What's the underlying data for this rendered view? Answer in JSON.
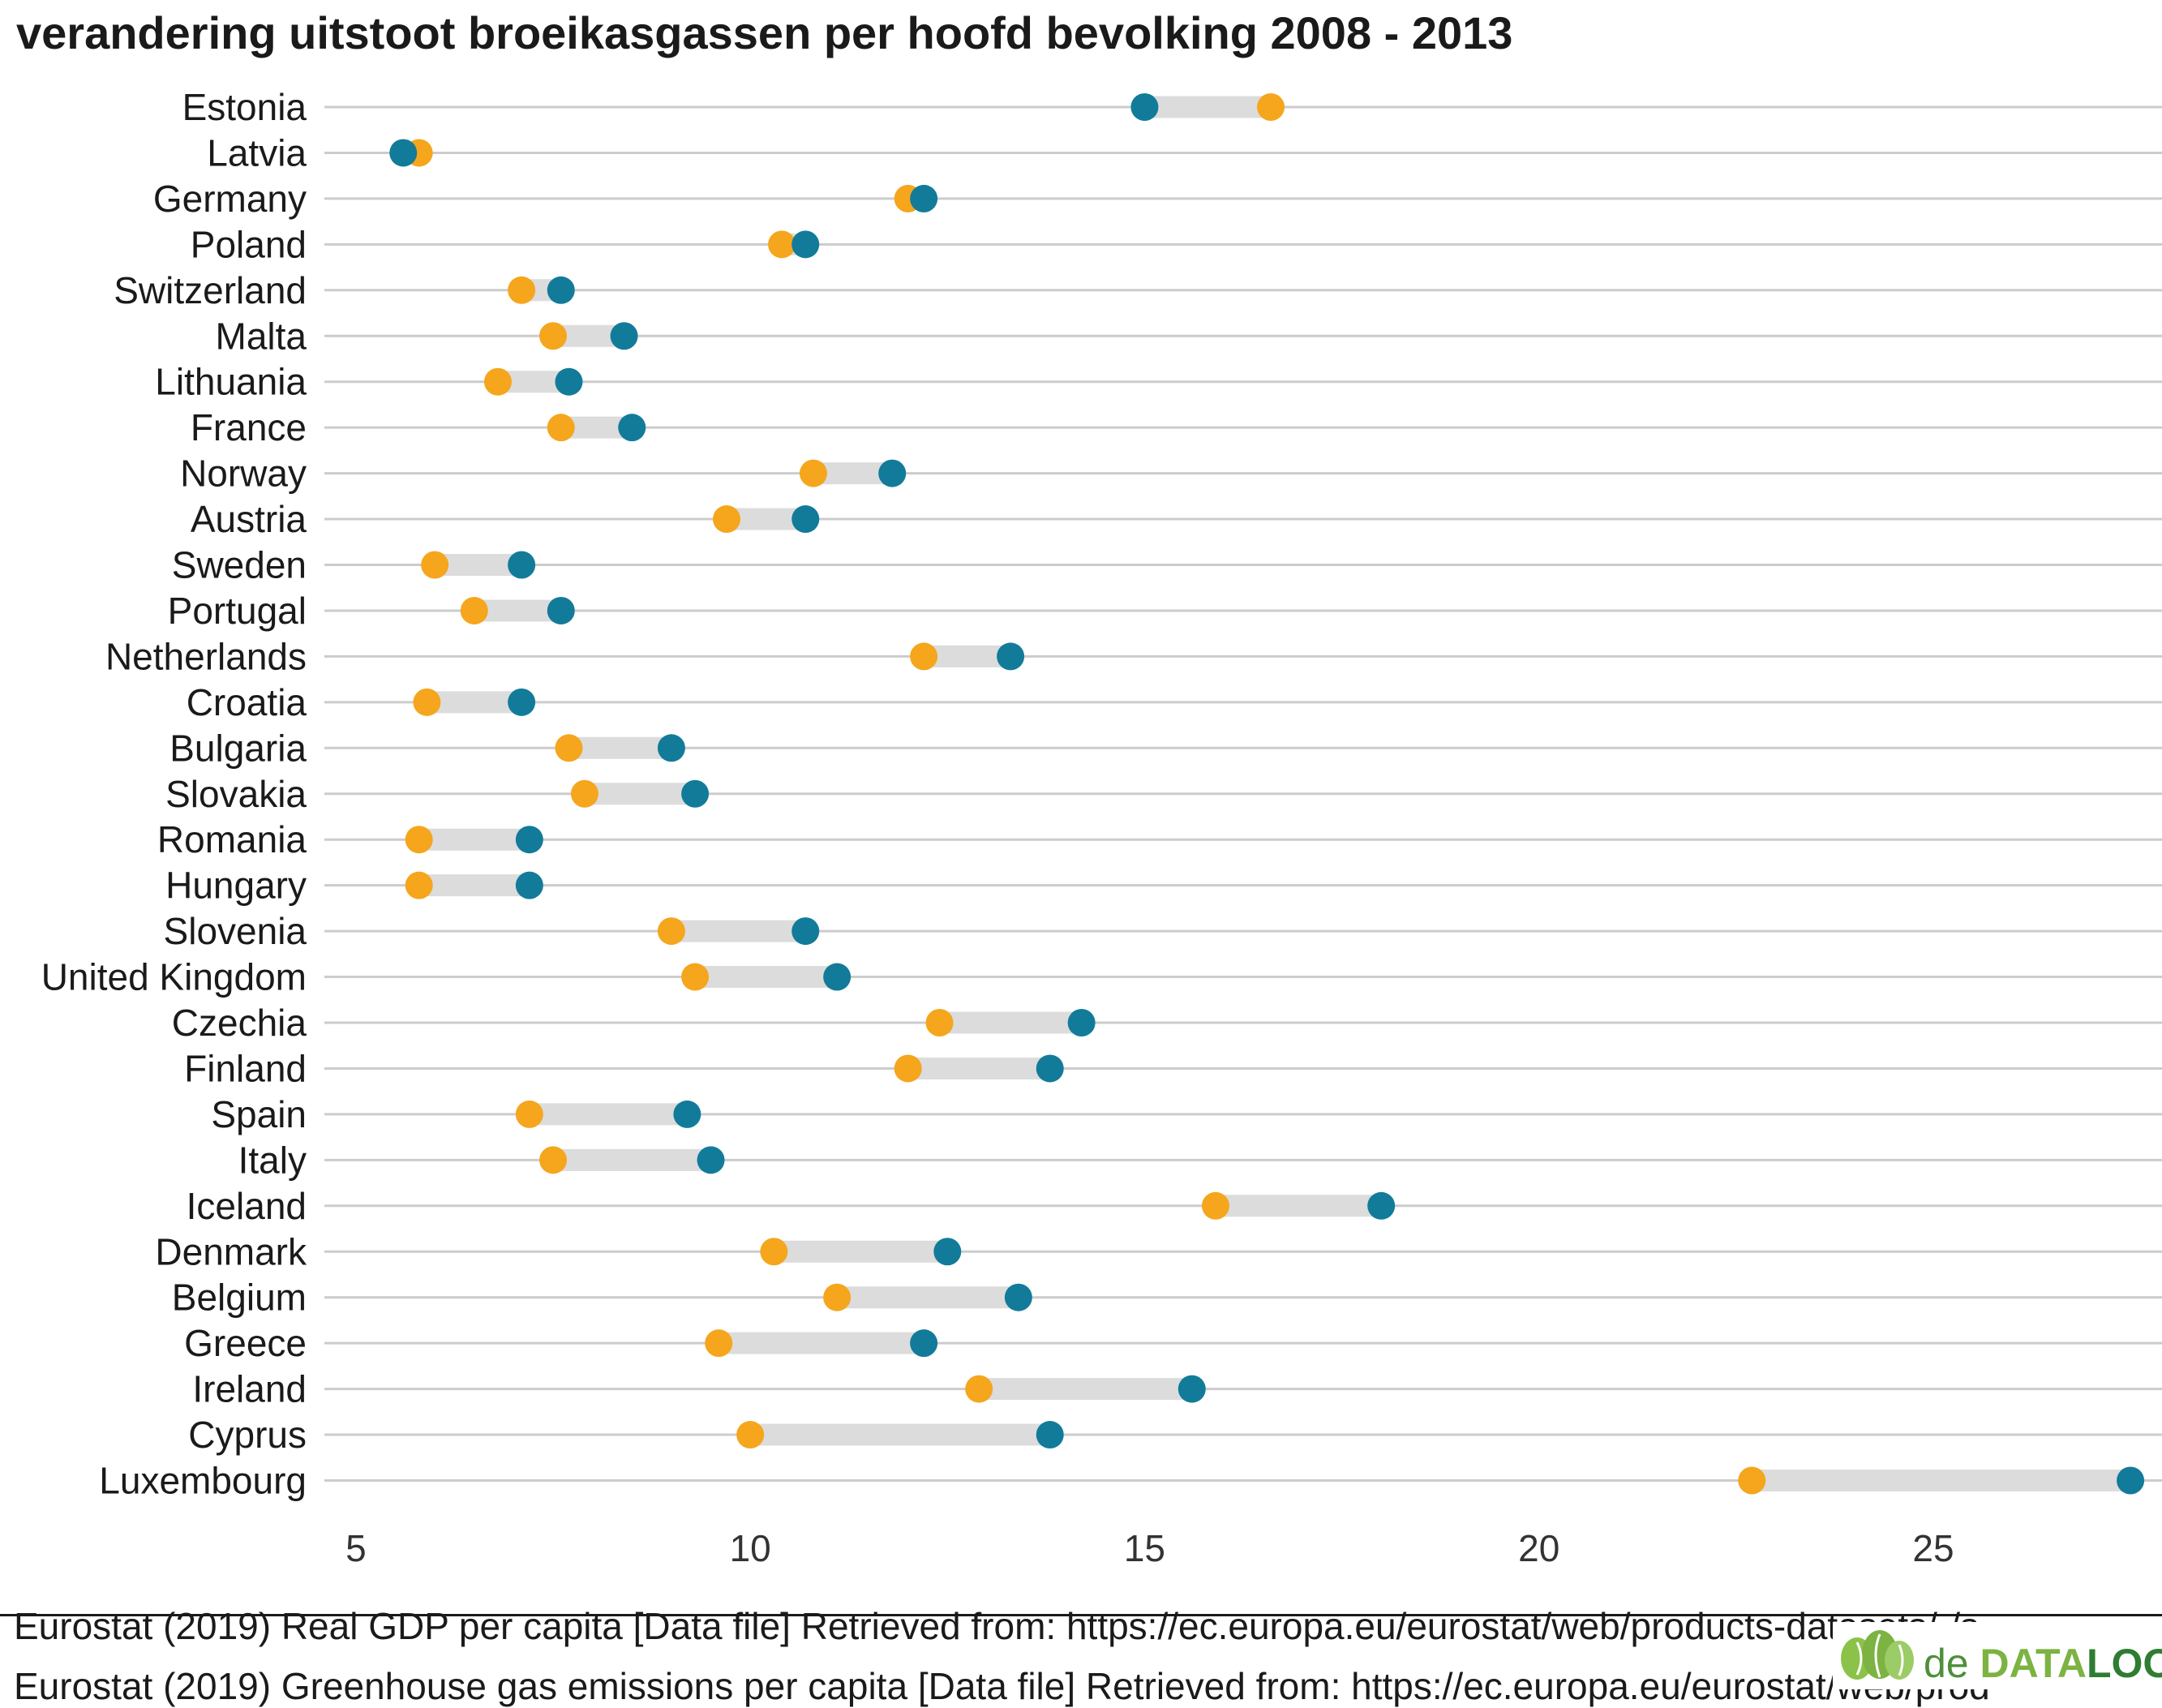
{
  "chart_data": {
    "type": "dumbbell",
    "title": "verandering uitstoot broeikasgassen per hoofd bevolking 2008 - 2013",
    "xlabel": "",
    "ylabel": "",
    "xlim": [
      4.6,
      27.9
    ],
    "xticks": [
      5,
      10,
      15,
      20,
      25
    ],
    "grid": "horizontal",
    "colors": {
      "start": "#F5A61D",
      "end": "#127B9A",
      "connector": "#DCDCDC",
      "grid": "#CCCCCC"
    },
    "categories": [
      "Estonia",
      "Latvia",
      "Germany",
      "Poland",
      "Switzerland",
      "Malta",
      "Lithuania",
      "France",
      "Norway",
      "Austria",
      "Sweden",
      "Portugal",
      "Netherlands",
      "Croatia",
      "Bulgaria",
      "Slovakia",
      "Romania",
      "Hungary",
      "Slovenia",
      "United Kingdom",
      "Czechia",
      "Finland",
      "Spain",
      "Italy",
      "Iceland",
      "Denmark",
      "Belgium",
      "Greece",
      "Ireland",
      "Cyprus",
      "Luxembourg"
    ],
    "series": [
      {
        "values": [
          16.6,
          5.8,
          12.0,
          10.4,
          7.1,
          7.5,
          6.8,
          7.6,
          10.8,
          9.7,
          6.0,
          6.5,
          12.2,
          5.9,
          7.7,
          7.9,
          5.8,
          5.8,
          9.0,
          9.3,
          12.4,
          12.0,
          7.2,
          7.5,
          15.9,
          10.3,
          11.1,
          9.6,
          12.9,
          10.0,
          22.7
        ]
      },
      {
        "values": [
          15.0,
          5.6,
          12.2,
          10.7,
          7.6,
          8.4,
          7.7,
          8.5,
          11.8,
          10.7,
          7.1,
          7.6,
          13.3,
          7.1,
          9.0,
          9.3,
          7.2,
          7.2,
          10.7,
          11.1,
          14.2,
          13.8,
          9.2,
          9.5,
          18.0,
          12.5,
          13.4,
          12.2,
          15.6,
          13.8,
          27.5
        ]
      }
    ]
  },
  "captions": {
    "line1": "Eurostat (2019) Real GDP per capita [Data file] Retrieved from: https://ec.europa.eu/eurostat/web/products-datasets/-/s",
    "line2": "Eurostat (2019) Greenhouse gas emissions per capita [Data file] Retrieved from: https://ec.europa.eu/eurostat/web/prod"
  },
  "logo": {
    "prefix": "de ",
    "brand_a": "DATA",
    "brand_b": "LOOG"
  }
}
